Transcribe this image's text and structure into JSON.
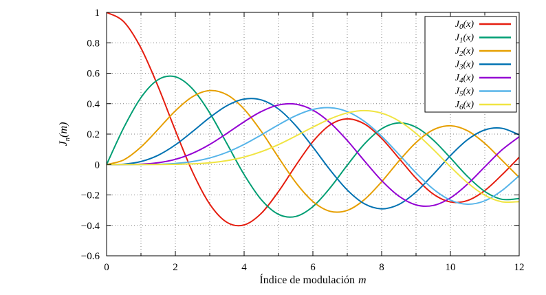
{
  "chart_data": {
    "type": "line",
    "title": "",
    "xlabel": {
      "text": "Índice de modulación",
      "math": "m"
    },
    "ylabel": {
      "base": "J",
      "sub": "n",
      "suffix": "(m)"
    },
    "xlim": [
      0,
      12
    ],
    "ylim": [
      -0.6,
      1
    ],
    "xtick_values": [
      0,
      2,
      4,
      6,
      8,
      10,
      12
    ],
    "xtick_labels": [
      "0",
      "2",
      "4",
      "6",
      "8",
      "10",
      "12"
    ],
    "xminor_values": [
      1,
      3,
      5,
      7,
      9,
      11
    ],
    "ytick_values": [
      -0.6,
      -0.4,
      -0.2,
      0,
      0.2,
      0.4,
      0.6,
      0.8,
      1
    ],
    "ytick_labels": [
      "−0.6",
      "−0.4",
      "−0.2",
      "0",
      "0.2",
      "0.4",
      "0.6",
      "0.8",
      "1"
    ],
    "grid": {
      "show": true,
      "style": "dotted",
      "color": "#808080"
    },
    "legend": {
      "position": "top-right",
      "border": "#000000",
      "background": "#ffffff"
    },
    "x": [
      0,
      0.5,
      1,
      1.5,
      2,
      2.5,
      3,
      3.5,
      4,
      4.5,
      5,
      5.5,
      6,
      6.5,
      7,
      7.5,
      8,
      8.5,
      9,
      9.5,
      10,
      10.5,
      11,
      11.5,
      12
    ],
    "series": [
      {
        "id": "J0",
        "label_base": "J",
        "label_sub": "0",
        "label_suffix": "(x)",
        "color": "#e51e10",
        "values": [
          1,
          0.9385,
          0.7652,
          0.5118,
          0.2239,
          -0.0484,
          -0.2601,
          -0.3801,
          -0.3971,
          -0.3205,
          -0.1776,
          -0.0068,
          0.1506,
          0.2601,
          0.3001,
          0.2663,
          0.1717,
          0.0419,
          -0.0903,
          -0.1939,
          -0.2459,
          -0.2366,
          -0.1712,
          -0.0677,
          0.0477
        ]
      },
      {
        "id": "J1",
        "label_base": "J",
        "label_sub": "1",
        "label_suffix": "(x)",
        "color": "#009e73",
        "values": [
          0,
          0.2423,
          0.4401,
          0.5579,
          0.5767,
          0.4971,
          0.3391,
          0.1374,
          -0.066,
          -0.2311,
          -0.3276,
          -0.3414,
          -0.2767,
          -0.1538,
          -0.0047,
          0.1352,
          0.2346,
          0.2731,
          0.2453,
          0.1613,
          0.0435,
          -0.0789,
          -0.1768,
          -0.2284,
          -0.2234
        ]
      },
      {
        "id": "J2",
        "label_base": "J",
        "label_sub": "2",
        "label_suffix": "(x)",
        "color": "#e69f00",
        "values": [
          0,
          0.0306,
          0.1149,
          0.2321,
          0.3528,
          0.4461,
          0.4861,
          0.4586,
          0.3641,
          0.2178,
          0.0466,
          -0.1173,
          -0.2429,
          -0.3074,
          -0.3014,
          -0.2303,
          -0.113,
          0.0223,
          0.1448,
          0.2279,
          0.2546,
          0.2216,
          0.139,
          0.0279,
          -0.0849
        ]
      },
      {
        "id": "J3",
        "label_base": "J",
        "label_sub": "3",
        "label_suffix": "(x)",
        "color": "#0072b2",
        "values": [
          0,
          0.0026,
          0.0196,
          0.061,
          0.1289,
          0.2166,
          0.3091,
          0.3868,
          0.4302,
          0.4247,
          0.3648,
          0.2561,
          0.1148,
          -0.0353,
          -0.1676,
          -0.2581,
          -0.2911,
          -0.2626,
          -0.1809,
          -0.0653,
          0.0584,
          0.1633,
          0.2273,
          0.2381,
          0.1951
        ]
      },
      {
        "id": "J4",
        "label_base": "J",
        "label_sub": "4",
        "label_suffix": "(x)",
        "color": "#9400d3",
        "values": [
          0,
          0.0002,
          0.0025,
          0.0118,
          0.034,
          0.0738,
          0.132,
          0.2044,
          0.2811,
          0.3484,
          0.3912,
          0.3967,
          0.3576,
          0.2748,
          0.1578,
          0.0238,
          -0.1054,
          -0.2077,
          -0.2655,
          -0.2691,
          -0.2196,
          -0.1283,
          -0.015,
          0.0963,
          0.1825
        ]
      },
      {
        "id": "J5",
        "label_base": "J",
        "label_sub": "5",
        "label_suffix": "(x)",
        "color": "#56b4e9",
        "values": [
          0,
          0,
          0.0002,
          0.0018,
          0.007,
          0.0195,
          0.043,
          0.0804,
          0.1321,
          0.1947,
          0.2611,
          0.3209,
          0.3621,
          0.3736,
          0.3479,
          0.2833,
          0.1858,
          0.0671,
          -0.055,
          -0.1613,
          -0.2341,
          -0.2611,
          -0.2383,
          -0.1711,
          -0.0735
        ]
      },
      {
        "id": "J6",
        "label_base": "J",
        "label_sub": "6",
        "label_suffix": "(x)",
        "color": "#f0e442",
        "values": [
          0,
          0,
          0,
          0.0002,
          0.0012,
          0.0042,
          0.0114,
          0.0254,
          0.0491,
          0.0843,
          0.131,
          0.1868,
          0.2458,
          0.2999,
          0.3392,
          0.3541,
          0.3376,
          0.2867,
          0.2043,
          0.0993,
          -0.0145,
          -0.1203,
          -0.2016,
          -0.2451,
          -0.2437
        ]
      }
    ]
  }
}
